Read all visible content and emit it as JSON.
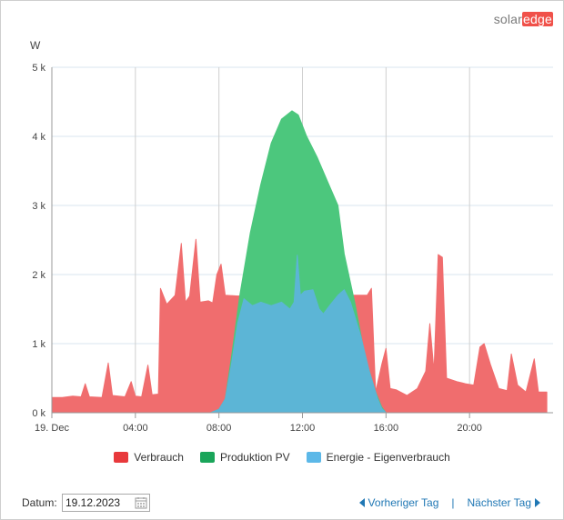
{
  "logo": {
    "solar": "solar",
    "edge": "edge"
  },
  "chart_data": {
    "type": "area",
    "ylabel": "W",
    "xlim": [
      0,
      24
    ],
    "ylim": [
      0,
      5000
    ],
    "y_ticks": [
      0,
      1000,
      2000,
      3000,
      4000,
      5000
    ],
    "y_tick_labels": [
      "0 k",
      "1 k",
      "2 k",
      "3 k",
      "4 k",
      "5 k"
    ],
    "x_ticks": [
      0,
      4,
      8,
      12,
      16,
      20
    ],
    "x_tick_labels": [
      "19. Dec",
      "04:00",
      "08:00",
      "12:00",
      "16:00",
      "20:00"
    ],
    "grid": true,
    "legend_position": "bottom",
    "series": [
      {
        "name": "Verbrauch",
        "color": "#f06d6e",
        "points": [
          [
            0,
            220
          ],
          [
            0.5,
            220
          ],
          [
            1,
            240
          ],
          [
            1.4,
            230
          ],
          [
            1.6,
            420
          ],
          [
            1.8,
            230
          ],
          [
            2.4,
            220
          ],
          [
            2.7,
            720
          ],
          [
            2.9,
            250
          ],
          [
            3.5,
            230
          ],
          [
            3.8,
            450
          ],
          [
            4,
            240
          ],
          [
            4.3,
            230
          ],
          [
            4.6,
            690
          ],
          [
            4.8,
            260
          ],
          [
            5.1,
            270
          ],
          [
            5.2,
            1800
          ],
          [
            5.5,
            1570
          ],
          [
            5.9,
            1700
          ],
          [
            6.2,
            2450
          ],
          [
            6.4,
            1600
          ],
          [
            6.6,
            1690
          ],
          [
            6.9,
            2510
          ],
          [
            7.1,
            1600
          ],
          [
            7.5,
            1620
          ],
          [
            7.7,
            1590
          ],
          [
            7.9,
            2000
          ],
          [
            8.1,
            2150
          ],
          [
            8.3,
            1700
          ],
          [
            8.9,
            1690
          ],
          [
            9.5,
            1700
          ],
          [
            10.5,
            1800
          ],
          [
            11.5,
            1900
          ],
          [
            12.5,
            1950
          ],
          [
            13.5,
            1700
          ],
          [
            14.5,
            1700
          ],
          [
            15.1,
            1700
          ],
          [
            15.3,
            1800
          ],
          [
            15.5,
            300
          ],
          [
            15.8,
            700
          ],
          [
            16.0,
            930
          ],
          [
            16.2,
            350
          ],
          [
            16.5,
            330
          ],
          [
            17.0,
            250
          ],
          [
            17.5,
            350
          ],
          [
            17.9,
            600
          ],
          [
            18.1,
            1290
          ],
          [
            18.3,
            600
          ],
          [
            18.5,
            2290
          ],
          [
            18.7,
            2250
          ],
          [
            18.9,
            500
          ],
          [
            19.4,
            450
          ],
          [
            19.8,
            420
          ],
          [
            20.2,
            400
          ],
          [
            20.5,
            950
          ],
          [
            20.7,
            1000
          ],
          [
            21.0,
            700
          ],
          [
            21.4,
            350
          ],
          [
            21.8,
            320
          ],
          [
            22.0,
            850
          ],
          [
            22.3,
            400
          ],
          [
            22.7,
            300
          ],
          [
            23.1,
            780
          ],
          [
            23.3,
            300
          ],
          [
            23.7,
            300
          ]
        ]
      },
      {
        "name": "Produktion PV",
        "color": "#4cc77d",
        "points": [
          [
            7.6,
            0
          ],
          [
            8.0,
            50
          ],
          [
            8.3,
            200
          ],
          [
            8.6,
            800
          ],
          [
            9.0,
            1700
          ],
          [
            9.5,
            2600
          ],
          [
            10.0,
            3300
          ],
          [
            10.5,
            3900
          ],
          [
            11.0,
            4250
          ],
          [
            11.5,
            4370
          ],
          [
            11.8,
            4310
          ],
          [
            12.2,
            4000
          ],
          [
            12.7,
            3700
          ],
          [
            13.2,
            3350
          ],
          [
            13.7,
            3000
          ],
          [
            14.0,
            2300
          ],
          [
            14.5,
            1600
          ],
          [
            15.0,
            800
          ],
          [
            15.5,
            300
          ],
          [
            15.8,
            80
          ],
          [
            16.0,
            0
          ]
        ]
      },
      {
        "name": "Energie - Eigenverbrauch",
        "color": "#5cb5d6",
        "points": [
          [
            7.6,
            0
          ],
          [
            8.0,
            50
          ],
          [
            8.3,
            200
          ],
          [
            8.6,
            700
          ],
          [
            8.9,
            1300
          ],
          [
            9.2,
            1650
          ],
          [
            9.6,
            1550
          ],
          [
            10.0,
            1600
          ],
          [
            10.5,
            1550
          ],
          [
            11.0,
            1600
          ],
          [
            11.4,
            1500
          ],
          [
            11.6,
            1600
          ],
          [
            11.75,
            2280
          ],
          [
            11.9,
            1700
          ],
          [
            12.1,
            1760
          ],
          [
            12.5,
            1780
          ],
          [
            12.8,
            1500
          ],
          [
            13.0,
            1430
          ],
          [
            13.3,
            1550
          ],
          [
            13.7,
            1700
          ],
          [
            14.0,
            1780
          ],
          [
            14.3,
            1600
          ],
          [
            14.8,
            1100
          ],
          [
            15.2,
            600
          ],
          [
            15.6,
            200
          ],
          [
            15.8,
            60
          ],
          [
            16.0,
            0
          ]
        ]
      }
    ]
  },
  "legend": [
    {
      "label": "Verbrauch",
      "color": "#e8393c"
    },
    {
      "label": "Produktion PV",
      "color": "#1aa55a"
    },
    {
      "label": "Energie - Eigenverbrauch",
      "color": "#5cb8e8"
    }
  ],
  "footer": {
    "date_label": "Datum:",
    "date_value": "19.12.2023",
    "prev_label": "Vorheriger Tag",
    "next_label": "Nächster Tag",
    "separator": "|"
  }
}
